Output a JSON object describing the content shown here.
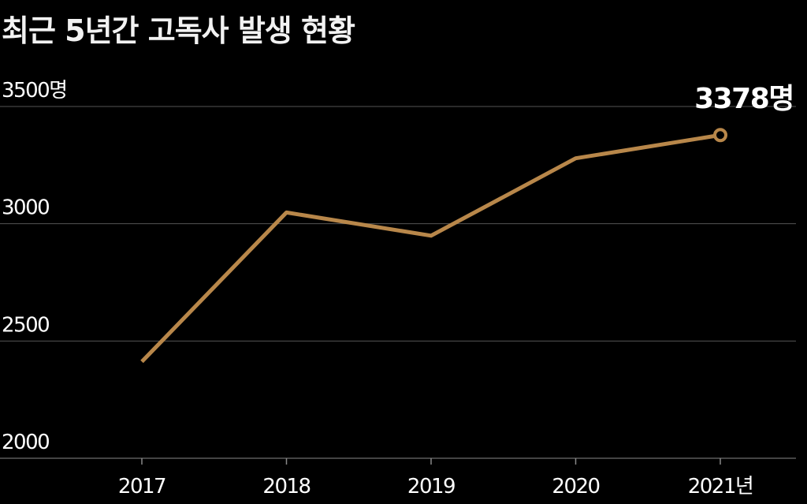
{
  "chart_data": {
    "type": "line",
    "title": "최근 5년간 고독사 발생 현황",
    "categories": [
      "2017",
      "2018",
      "2019",
      "2020",
      "2021"
    ],
    "x_tick_labels": [
      "2017",
      "2018",
      "2019",
      "2020",
      "2021년"
    ],
    "series": [
      {
        "name": "고독사",
        "values": [
          2412,
          3048,
          2949,
          3279,
          3378
        ]
      }
    ],
    "y_tick_labels": [
      "2000",
      "2500",
      "3000",
      "3500명"
    ],
    "y_ticks": [
      2000,
      2500,
      3000,
      3500
    ],
    "ylim": [
      2000,
      3500
    ],
    "grid": true,
    "annotation": "3378명",
    "xlabel": "",
    "ylabel": "",
    "colors": {
      "line": "#b8874a",
      "grid": "#555555",
      "background": "#000000",
      "text": "#ffffff"
    }
  }
}
